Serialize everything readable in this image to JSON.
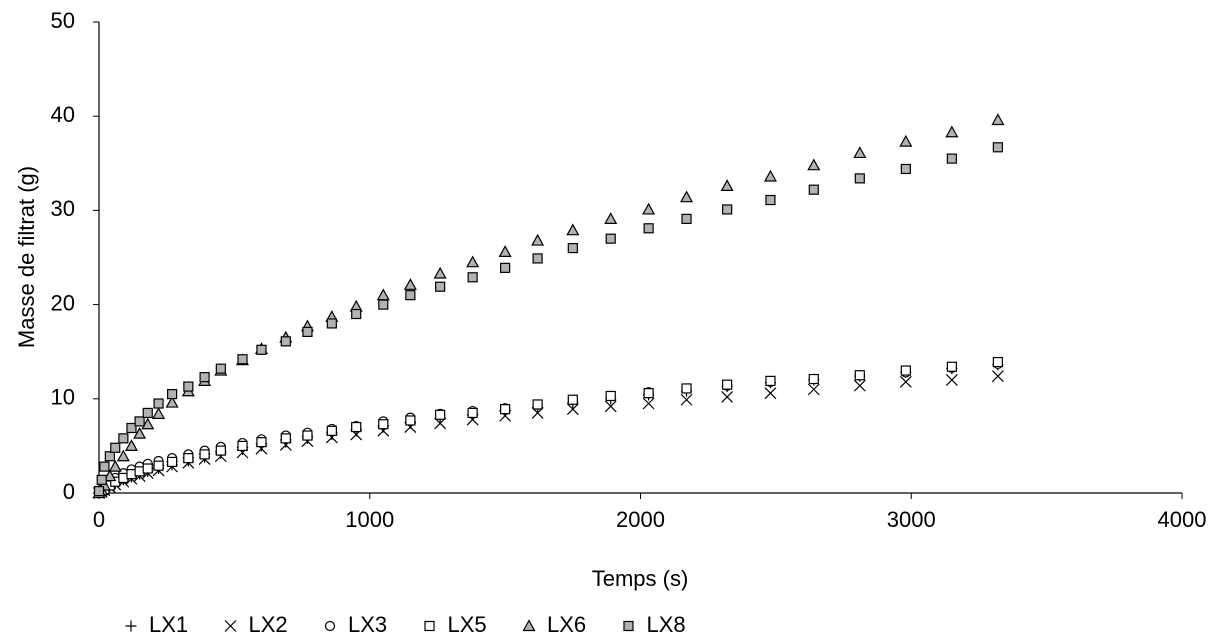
{
  "chart_data": {
    "type": "scatter",
    "x_label": "Temps (s)",
    "y_label": "Masse de filtrat (g)",
    "x": [
      0,
      10,
      20,
      40,
      60,
      90,
      120,
      150,
      180,
      220,
      270,
      330,
      390,
      450,
      530,
      600,
      690,
      770,
      860,
      950,
      1050,
      1150,
      1260,
      1380,
      1500,
      1620,
      1750,
      1890,
      2030,
      2170,
      2320,
      2480,
      2640,
      2810,
      2980,
      3150,
      3320
    ],
    "series": [
      {
        "name": "LX1",
        "marker": "plus",
        "color": "#000000",
        "fill": "none",
        "values": [
          0,
          0.2,
          0.4,
          0.7,
          1.0,
          1.4,
          1.7,
          2.0,
          2.3,
          2.6,
          3.0,
          3.4,
          3.8,
          4.2,
          4.6,
          5.0,
          5.4,
          5.8,
          6.2,
          6.6,
          7.0,
          7.4,
          7.9,
          8.3,
          8.7,
          9.1,
          9.6,
          10.0,
          10.4,
          10.8,
          11.3,
          11.7,
          12.0,
          12.4,
          12.8,
          13.2,
          13.6
        ]
      },
      {
        "name": "LX2",
        "marker": "cross",
        "color": "#000000",
        "fill": "none",
        "values": [
          0,
          0.1,
          0.3,
          0.6,
          0.9,
          1.2,
          1.5,
          1.8,
          2.1,
          2.4,
          2.8,
          3.2,
          3.6,
          3.9,
          4.3,
          4.7,
          5.1,
          5.5,
          5.9,
          6.2,
          6.6,
          7.0,
          7.4,
          7.8,
          8.2,
          8.5,
          8.9,
          9.2,
          9.5,
          9.9,
          10.2,
          10.6,
          11.0,
          11.4,
          11.8,
          12.0,
          12.4
        ]
      },
      {
        "name": "LX3",
        "marker": "circle",
        "color": "#000000",
        "fill": "#ffffff",
        "values": [
          0,
          0.3,
          0.6,
          1.1,
          1.6,
          2.1,
          2.5,
          2.8,
          3.1,
          3.4,
          3.7,
          4.1,
          4.5,
          4.9,
          5.3,
          5.7,
          6.1,
          6.4,
          6.8,
          7.1,
          7.6,
          8.0,
          8.4,
          8.7,
          9.0,
          9.4,
          9.9,
          10.3,
          10.7,
          11.1,
          11.4,
          11.8,
          12.1,
          12.5,
          12.8,
          13.3,
          13.7
        ]
      },
      {
        "name": "LX5",
        "marker": "square",
        "color": "#000000",
        "fill": "#ffffff",
        "values": [
          0,
          0.2,
          0.4,
          0.8,
          1.2,
          1.6,
          2.0,
          2.3,
          2.6,
          2.9,
          3.3,
          3.7,
          4.1,
          4.5,
          5.0,
          5.4,
          5.8,
          6.1,
          6.6,
          7.0,
          7.3,
          7.7,
          8.3,
          8.5,
          8.9,
          9.4,
          9.9,
          10.3,
          10.6,
          11.1,
          11.5,
          11.9,
          12.1,
          12.5,
          13.0,
          13.4,
          13.9
        ]
      },
      {
        "name": "LX6",
        "marker": "triangle",
        "color": "#000000",
        "fill": "#b2b2b2",
        "values": [
          0,
          0.3,
          0.8,
          1.8,
          2.8,
          3.9,
          5.0,
          6.3,
          7.3,
          8.4,
          9.6,
          10.8,
          11.9,
          13.0,
          14.1,
          15.3,
          16.5,
          17.7,
          18.7,
          19.8,
          21.0,
          22.1,
          23.3,
          24.5,
          25.6,
          26.8,
          27.9,
          29.1,
          30.1,
          31.4,
          32.6,
          33.6,
          34.8,
          36.1,
          37.3,
          38.3,
          39.6
        ]
      },
      {
        "name": "LX8",
        "marker": "square",
        "color": "#000000",
        "fill": "#b2b2b2",
        "values": [
          0.2,
          1.4,
          2.8,
          3.9,
          4.8,
          5.8,
          6.9,
          7.6,
          8.5,
          9.5,
          10.5,
          11.3,
          12.3,
          13.2,
          14.2,
          15.2,
          16.1,
          17.1,
          18.0,
          19.0,
          20.0,
          21.0,
          21.9,
          22.9,
          23.9,
          24.9,
          26.0,
          27.0,
          28.1,
          29.1,
          30.1,
          31.1,
          32.2,
          33.4,
          34.4,
          35.5,
          36.7
        ]
      }
    ],
    "xlim": [
      0,
      4000
    ],
    "xticks": [
      0,
      1000,
      2000,
      3000,
      4000
    ],
    "ylim": [
      0,
      50
    ],
    "yticks": [
      0,
      10,
      20,
      30,
      40,
      50
    ],
    "grid": false,
    "legend": "bottom"
  }
}
